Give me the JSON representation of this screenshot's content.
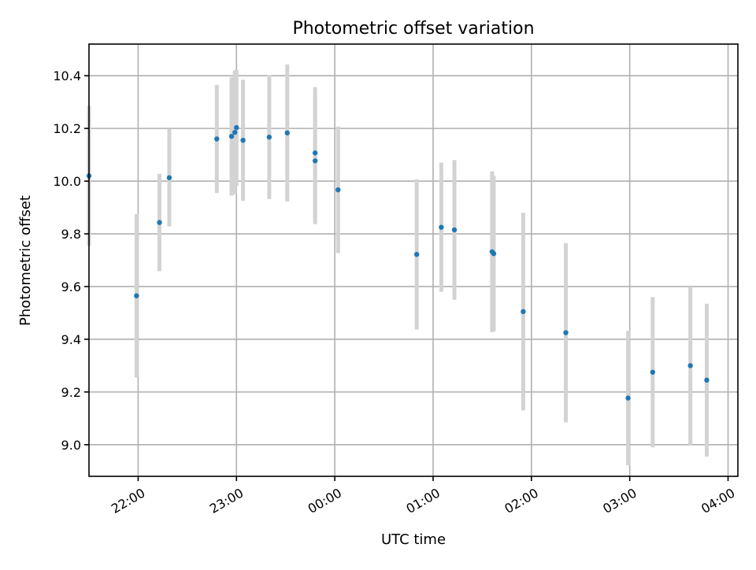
{
  "chart_data": {
    "type": "scatter",
    "title": "Photometric offset variation",
    "xlabel": "UTC time",
    "ylabel": "Photometric offset",
    "x_unit": "hours",
    "xlim": [
      "21:30",
      "04:06"
    ],
    "ylim": [
      8.88,
      10.52
    ],
    "xticks": [
      {
        "t": "22:00",
        "label": "22:00"
      },
      {
        "t": "23:00",
        "label": "23:00"
      },
      {
        "t": "00:00",
        "label": "00:00"
      },
      {
        "t": "01:00",
        "label": "01:00"
      },
      {
        "t": "02:00",
        "label": "02:00"
      },
      {
        "t": "03:00",
        "label": "03:00"
      },
      {
        "t": "04:00",
        "label": "04:00"
      }
    ],
    "yticks": [
      9.0,
      9.2,
      9.4,
      9.6,
      9.8,
      10.0,
      10.2,
      10.4
    ],
    "ytick_labels": [
      "9.0",
      "9.2",
      "9.4",
      "9.6",
      "9.8",
      "10.0",
      "10.2",
      "10.4"
    ],
    "grid": true,
    "marker_color": "#1f77b4",
    "errorbar_color": "#d3d3d3",
    "points": [
      {
        "t": "21:30",
        "y": 10.02,
        "err": 0.265
      },
      {
        "t": "21:59",
        "y": 9.565,
        "err": 0.31
      },
      {
        "t": "22:13",
        "y": 9.843,
        "err": 0.185
      },
      {
        "t": "22:19",
        "y": 10.013,
        "err": 0.185
      },
      {
        "t": "22:48",
        "y": 10.16,
        "err": 0.205
      },
      {
        "t": "22:57",
        "y": 10.17,
        "err": 0.225
      },
      {
        "t": "22:59",
        "y": 10.185,
        "err": 0.235
      },
      {
        "t": "23:00",
        "y": 10.203,
        "err": 0.22
      },
      {
        "t": "23:04",
        "y": 10.155,
        "err": 0.23
      },
      {
        "t": "23:20",
        "y": 10.167,
        "err": 0.235
      },
      {
        "t": "23:31",
        "y": 10.183,
        "err": 0.26
      },
      {
        "t": "23:48",
        "y": 10.107,
        "err": 0.25
      },
      {
        "t": "23:48",
        "y": 10.077,
        "err": 0.24
      },
      {
        "t": "00:02",
        "y": 9.967,
        "err": 0.24
      },
      {
        "t": "00:50",
        "y": 9.722,
        "err": 0.285
      },
      {
        "t": "01:05",
        "y": 9.825,
        "err": 0.245
      },
      {
        "t": "01:13",
        "y": 9.815,
        "err": 0.265
      },
      {
        "t": "01:36",
        "y": 9.732,
        "err": 0.305
      },
      {
        "t": "01:37",
        "y": 9.725,
        "err": 0.295
      },
      {
        "t": "01:55",
        "y": 9.505,
        "err": 0.375
      },
      {
        "t": "02:21",
        "y": 9.425,
        "err": 0.34
      },
      {
        "t": "02:59",
        "y": 9.177,
        "err": 0.255
      },
      {
        "t": "03:14",
        "y": 9.275,
        "err": 0.285
      },
      {
        "t": "03:37",
        "y": 9.3,
        "err": 0.3
      },
      {
        "t": "03:47",
        "y": 9.245,
        "err": 0.29
      }
    ]
  }
}
